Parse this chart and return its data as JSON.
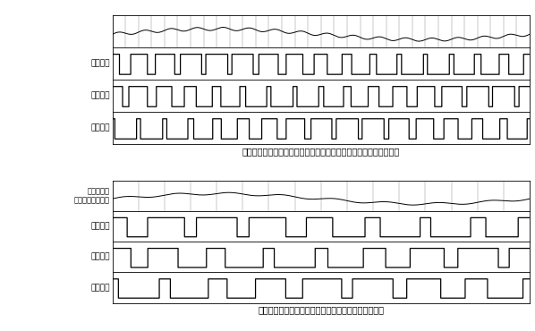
{
  "title_a": "（ａ）通常型のＰＷＭ、ＳＷＭ又はＳＶＰＷＭによるサンプリング",
  "title_b": "（ｂ）位相／周波数可変型ＰＷＭによるサンプリング",
  "label_phase1": "相１電圧",
  "label_phase2": "相２電圧",
  "label_phase3": "相３電圧",
  "label_current": "結果として\nもたらされる電流",
  "bg_color": "#ffffff",
  "line_color": "#000000",
  "font_size": 7.0,
  "label_font_size": 6.5,
  "carrier_period": 0.0625,
  "fund_period": 1.0,
  "amplitude": 0.7
}
